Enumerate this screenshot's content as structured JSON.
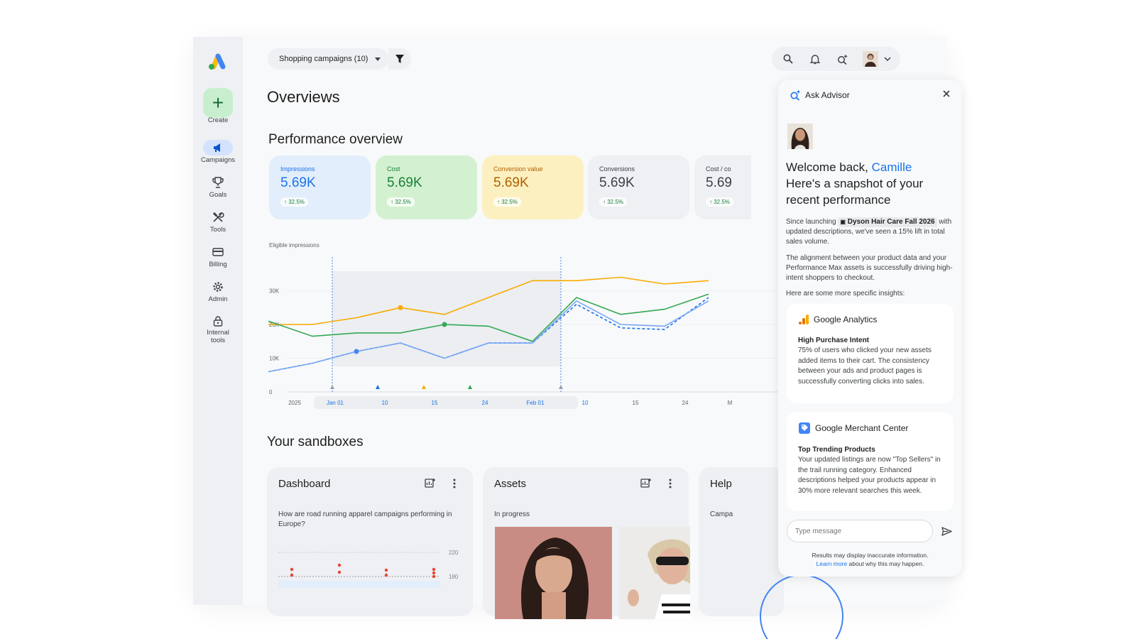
{
  "sidebar": {
    "create_label": "Create",
    "items": [
      {
        "label": "Campaigns",
        "icon": "megaphone-icon",
        "active": true
      },
      {
        "label": "Goals",
        "icon": "trophy-icon"
      },
      {
        "label": "Tools",
        "icon": "tools-icon"
      },
      {
        "label": "Billing",
        "icon": "credit-card-icon"
      },
      {
        "label": "Admin",
        "icon": "gear-icon"
      },
      {
        "label": "Internal tools",
        "icon": "lock-icon"
      }
    ]
  },
  "header": {
    "filter_label": "Shopping campaigns (10)"
  },
  "page_title": "Overviews",
  "performance": {
    "title": "Performance overview",
    "cards": [
      {
        "label": "Impressions",
        "value": "5.69K",
        "delta": "↑ 32.5%",
        "bg": "#e3eefc",
        "label_color": "#1a73e8",
        "value_color": "#1a73e8"
      },
      {
        "label": "Cost",
        "value": "5.69K",
        "delta": "↑ 32.5%",
        "bg": "#d3f1d0",
        "label_color": "#188038",
        "value_color": "#188038"
      },
      {
        "label": "Conversion value",
        "value": "5.69K",
        "delta": "↑ 32.5%",
        "bg": "#fdf0c0",
        "label_color": "#b06000",
        "value_color": "#b06000"
      },
      {
        "label": "Conversions",
        "value": "5.69K",
        "delta": "↑ 32.5%",
        "bg": "#eef0f3",
        "label_color": "#3c4043",
        "value_color": "#3c4043"
      },
      {
        "label": "Cost / co",
        "value": "5.69",
        "delta": "↑ 32.5%",
        "bg": "#eef0f3",
        "label_color": "#3c4043",
        "value_color": "#3c4043"
      }
    ]
  },
  "chart_data": {
    "type": "line",
    "ylabel": "Eligible impressions",
    "ylim": [
      0,
      40000
    ],
    "yticks": [
      {
        "v": 0,
        "label": "0"
      },
      {
        "v": 10000,
        "label": "10K"
      },
      {
        "v": 20000,
        "label": "20K"
      },
      {
        "v": 30000,
        "label": "30K"
      }
    ],
    "x_labels": [
      "2025",
      "Jan 01",
      "10",
      "15",
      "24",
      "Feb 01",
      "10",
      "15",
      "24",
      "M"
    ],
    "x_label_colors": [
      "#5f6368",
      "#1a73e8",
      "#1a73e8",
      "#1a73e8",
      "#1a73e8",
      "#1a73e8",
      "#1a73e8",
      "#5f6368",
      "#5f6368",
      "#5f6368"
    ],
    "series": [
      {
        "color": "#f9ab00",
        "dash": false,
        "values": [
          20000,
          20000,
          22000,
          25000,
          23000,
          28000,
          33000,
          33000,
          34000,
          32000,
          33000
        ]
      },
      {
        "color": "#34a853",
        "dash": false,
        "values": [
          21000,
          16500,
          17500,
          17500,
          20000,
          19500,
          15000,
          28000,
          23000,
          24500,
          29000
        ]
      },
      {
        "color": "#1a73e8",
        "dash": true,
        "values": [
          6000,
          8500,
          12000,
          14500,
          10000,
          14500,
          14500,
          26000,
          19000,
          18500,
          28000
        ]
      },
      {
        "color": "#7aa7f5",
        "dash": false,
        "values": [
          6000,
          8500,
          12000,
          14500,
          10000,
          14500,
          14500,
          27000,
          20000,
          19500,
          27000
        ]
      }
    ],
    "markers": [
      {
        "series": 2,
        "index": 2,
        "color": "#4285f4"
      },
      {
        "series": 0,
        "index": 3,
        "color": "#f9ab00"
      },
      {
        "series": 1,
        "index": 4,
        "color": "#34a853"
      }
    ],
    "grid": true
  },
  "sandboxes": {
    "title": "Your sandboxes",
    "cards": [
      {
        "title": "Dashboard",
        "text_line1": "How are road running apparel campaigns performing in",
        "text_line2": "Europe?",
        "y_labels": [
          "220",
          "180"
        ]
      },
      {
        "title": "Assets",
        "text_line1": "In progress"
      },
      {
        "title": "Help",
        "text_line1": "Campa"
      }
    ]
  },
  "advisor": {
    "title": "Ask Advisor",
    "welcome_prefix": "Welcome back, ",
    "user_name": "Camille",
    "welcome_line2": "Here's a snapshot of your",
    "welcome_line3": "recent performance",
    "para1_before": "Since launching",
    "campaign_name": "Dyson Hair Care Fall 2026",
    "para1_after": "with updated descriptions, we've seen a 15% lift in total sales volume.",
    "para2": "The alignment between your product data and your Performance Max assets is successfully driving high-intent shoppers to checkout.",
    "para3": "Here are some more specific insights:",
    "insights": [
      {
        "source": "Google Analytics",
        "icon": "analytics-icon",
        "subtitle": "High Purchase Intent",
        "body": "75% of users who clicked your new assets added items to their cart. The consistency between your ads and product pages is successfully converting clicks into sales."
      },
      {
        "source": "Google Merchant Center",
        "icon": "merchant-center-icon",
        "subtitle": "Top Trending Products",
        "body": "Your updated listings are now \"Top Sellers\" in the trail running category. Enhanced descriptions helped your products appear in 30% more relevant searches this week."
      }
    ],
    "input_placeholder": "Type message",
    "disclaimer_line1": "Results may display inaccurate information.",
    "learn_more": "Learn more",
    "disclaimer_rest": " about why this may happen."
  }
}
